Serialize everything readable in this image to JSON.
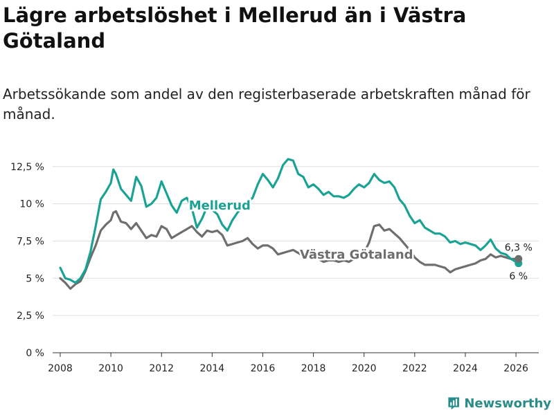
{
  "title": "Lägre arbetslöshet i Mellerud än i Västra Götaland",
  "subtitle": "Arbetssökande som andel av den registerbaserade arbetskraften månad för månad.",
  "logo": {
    "text": "Newsworthy",
    "icon": "bar-chart-logo-icon",
    "color": "#2a8c88"
  },
  "chart_data": {
    "type": "line",
    "title": "Lägre arbetslöshet i Mellerud än i Västra Götaland",
    "xlabel": "",
    "ylabel": "",
    "xlim": [
      2007.7,
      2026.9
    ],
    "ylim": [
      0,
      13
    ],
    "x_ticks": [
      2008,
      2010,
      2012,
      2014,
      2016,
      2018,
      2020,
      2022,
      2024,
      2026
    ],
    "x_tick_labels": [
      "2008",
      "2010",
      "2012",
      "2014",
      "2016",
      "2018",
      "2020",
      "2022",
      "2024",
      "2026"
    ],
    "y_ticks": [
      0,
      2.5,
      5,
      7.5,
      10,
      12.5
    ],
    "y_tick_labels": [
      "0 %",
      "2,5 %",
      "5 %",
      "7,5 %",
      "10 %",
      "12,5 %"
    ],
    "grid": true,
    "series": [
      {
        "name": "Mellerud",
        "label": "Mellerud",
        "color": "#1aa394",
        "end_label": "6 %",
        "points": [
          [
            2008.0,
            5.7
          ],
          [
            2008.2,
            5.0
          ],
          [
            2008.4,
            4.9
          ],
          [
            2008.6,
            4.7
          ],
          [
            2008.8,
            5.0
          ],
          [
            2009.0,
            5.6
          ],
          [
            2009.2,
            6.8
          ],
          [
            2009.4,
            8.5
          ],
          [
            2009.6,
            10.3
          ],
          [
            2009.8,
            10.8
          ],
          [
            2010.0,
            11.4
          ],
          [
            2010.1,
            12.3
          ],
          [
            2010.2,
            12.0
          ],
          [
            2010.4,
            11.0
          ],
          [
            2010.6,
            10.6
          ],
          [
            2010.8,
            10.2
          ],
          [
            2011.0,
            11.8
          ],
          [
            2011.2,
            11.2
          ],
          [
            2011.4,
            9.8
          ],
          [
            2011.6,
            10.0
          ],
          [
            2011.8,
            10.4
          ],
          [
            2012.0,
            11.5
          ],
          [
            2012.2,
            10.7
          ],
          [
            2012.4,
            9.9
          ],
          [
            2012.6,
            9.4
          ],
          [
            2012.8,
            10.2
          ],
          [
            2013.0,
            10.4
          ],
          [
            2013.2,
            9.7
          ],
          [
            2013.4,
            8.4
          ],
          [
            2013.6,
            9.0
          ],
          [
            2013.8,
            9.8
          ],
          [
            2014.0,
            9.6
          ],
          [
            2014.2,
            9.3
          ],
          [
            2014.4,
            8.6
          ],
          [
            2014.6,
            8.2
          ],
          [
            2014.8,
            8.9
          ],
          [
            2015.0,
            9.4
          ],
          [
            2015.2,
            9.8
          ],
          [
            2015.4,
            10.1
          ],
          [
            2015.6,
            10.4
          ],
          [
            2015.8,
            11.3
          ],
          [
            2016.0,
            12.0
          ],
          [
            2016.2,
            11.6
          ],
          [
            2016.4,
            11.1
          ],
          [
            2016.6,
            11.7
          ],
          [
            2016.8,
            12.6
          ],
          [
            2017.0,
            13.0
          ],
          [
            2017.2,
            12.9
          ],
          [
            2017.4,
            12.0
          ],
          [
            2017.6,
            11.8
          ],
          [
            2017.8,
            11.1
          ],
          [
            2018.0,
            11.3
          ],
          [
            2018.2,
            11.0
          ],
          [
            2018.4,
            10.6
          ],
          [
            2018.6,
            10.8
          ],
          [
            2018.8,
            10.5
          ],
          [
            2019.0,
            10.5
          ],
          [
            2019.2,
            10.4
          ],
          [
            2019.4,
            10.6
          ],
          [
            2019.6,
            11.0
          ],
          [
            2019.8,
            11.3
          ],
          [
            2020.0,
            11.1
          ],
          [
            2020.2,
            11.4
          ],
          [
            2020.4,
            12.0
          ],
          [
            2020.6,
            11.6
          ],
          [
            2020.8,
            11.4
          ],
          [
            2021.0,
            11.5
          ],
          [
            2021.2,
            11.1
          ],
          [
            2021.4,
            10.3
          ],
          [
            2021.6,
            9.9
          ],
          [
            2021.8,
            9.2
          ],
          [
            2022.0,
            8.7
          ],
          [
            2022.2,
            8.9
          ],
          [
            2022.4,
            8.4
          ],
          [
            2022.6,
            8.2
          ],
          [
            2022.8,
            8.0
          ],
          [
            2023.0,
            8.0
          ],
          [
            2023.2,
            7.8
          ],
          [
            2023.4,
            7.4
          ],
          [
            2023.6,
            7.5
          ],
          [
            2023.8,
            7.3
          ],
          [
            2024.0,
            7.4
          ],
          [
            2024.2,
            7.3
          ],
          [
            2024.4,
            7.2
          ],
          [
            2024.6,
            6.9
          ],
          [
            2024.8,
            7.2
          ],
          [
            2025.0,
            7.6
          ],
          [
            2025.2,
            7.0
          ],
          [
            2025.4,
            6.7
          ],
          [
            2025.6,
            6.6
          ],
          [
            2025.8,
            6.3
          ],
          [
            2026.0,
            6.1
          ],
          [
            2026.1,
            6.0
          ]
        ]
      },
      {
        "name": "Västra Götaland",
        "label": "Västra Götaland",
        "color": "#6e6e6e",
        "end_label": "6,3 %",
        "points": [
          [
            2008.0,
            5.0
          ],
          [
            2008.2,
            4.7
          ],
          [
            2008.4,
            4.3
          ],
          [
            2008.6,
            4.6
          ],
          [
            2008.8,
            4.8
          ],
          [
            2009.0,
            5.5
          ],
          [
            2009.2,
            6.4
          ],
          [
            2009.4,
            7.2
          ],
          [
            2009.6,
            8.2
          ],
          [
            2009.8,
            8.6
          ],
          [
            2010.0,
            8.9
          ],
          [
            2010.1,
            9.4
          ],
          [
            2010.2,
            9.5
          ],
          [
            2010.4,
            8.8
          ],
          [
            2010.6,
            8.7
          ],
          [
            2010.8,
            8.3
          ],
          [
            2011.0,
            8.7
          ],
          [
            2011.2,
            8.2
          ],
          [
            2011.4,
            7.7
          ],
          [
            2011.6,
            7.9
          ],
          [
            2011.8,
            7.8
          ],
          [
            2012.0,
            8.5
          ],
          [
            2012.2,
            8.3
          ],
          [
            2012.4,
            7.7
          ],
          [
            2012.6,
            7.9
          ],
          [
            2012.8,
            8.1
          ],
          [
            2013.0,
            8.3
          ],
          [
            2013.2,
            8.5
          ],
          [
            2013.4,
            8.1
          ],
          [
            2013.6,
            7.8
          ],
          [
            2013.8,
            8.2
          ],
          [
            2014.0,
            8.1
          ],
          [
            2014.2,
            8.2
          ],
          [
            2014.4,
            7.9
          ],
          [
            2014.6,
            7.2
          ],
          [
            2014.8,
            7.3
          ],
          [
            2015.0,
            7.4
          ],
          [
            2015.2,
            7.5
          ],
          [
            2015.4,
            7.7
          ],
          [
            2015.6,
            7.3
          ],
          [
            2015.8,
            7.0
          ],
          [
            2016.0,
            7.2
          ],
          [
            2016.2,
            7.2
          ],
          [
            2016.4,
            7.0
          ],
          [
            2016.6,
            6.6
          ],
          [
            2016.8,
            6.7
          ],
          [
            2017.0,
            6.8
          ],
          [
            2017.2,
            6.9
          ],
          [
            2017.4,
            6.7
          ],
          [
            2017.6,
            6.5
          ],
          [
            2017.8,
            6.4
          ],
          [
            2018.0,
            6.4
          ],
          [
            2018.2,
            6.3
          ],
          [
            2018.4,
            6.1
          ],
          [
            2018.6,
            6.2
          ],
          [
            2018.8,
            6.2
          ],
          [
            2019.0,
            6.1
          ],
          [
            2019.2,
            6.2
          ],
          [
            2019.4,
            6.1
          ],
          [
            2019.6,
            6.3
          ],
          [
            2019.8,
            6.5
          ],
          [
            2020.0,
            6.7
          ],
          [
            2020.2,
            7.4
          ],
          [
            2020.4,
            8.5
          ],
          [
            2020.6,
            8.6
          ],
          [
            2020.8,
            8.2
          ],
          [
            2021.0,
            8.3
          ],
          [
            2021.2,
            8.0
          ],
          [
            2021.4,
            7.7
          ],
          [
            2021.6,
            7.3
          ],
          [
            2021.8,
            6.9
          ],
          [
            2022.0,
            6.4
          ],
          [
            2022.2,
            6.1
          ],
          [
            2022.4,
            5.9
          ],
          [
            2022.6,
            5.9
          ],
          [
            2022.8,
            5.9
          ],
          [
            2023.0,
            5.8
          ],
          [
            2023.2,
            5.7
          ],
          [
            2023.4,
            5.4
          ],
          [
            2023.6,
            5.6
          ],
          [
            2023.8,
            5.7
          ],
          [
            2024.0,
            5.8
          ],
          [
            2024.2,
            5.9
          ],
          [
            2024.4,
            6.0
          ],
          [
            2024.6,
            6.2
          ],
          [
            2024.8,
            6.3
          ],
          [
            2025.0,
            6.6
          ],
          [
            2025.2,
            6.4
          ],
          [
            2025.4,
            6.5
          ],
          [
            2025.6,
            6.4
          ],
          [
            2025.8,
            6.3
          ],
          [
            2026.0,
            6.3
          ],
          [
            2026.1,
            6.3
          ]
        ]
      }
    ],
    "annotations": [
      {
        "series": "Mellerud",
        "text": "Mellerud",
        "x": 2014.3,
        "y": 9.9
      },
      {
        "series": "Västra Götaland",
        "text": "Västra Götaland",
        "x": 2019.7,
        "y": 6.6
      }
    ]
  }
}
